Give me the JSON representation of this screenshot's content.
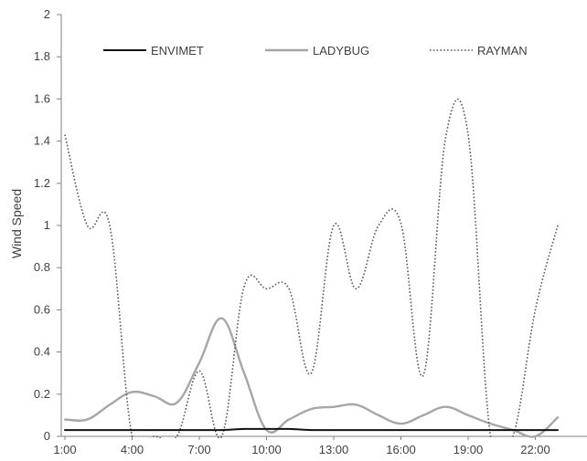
{
  "chart_data": {
    "type": "line",
    "title": "",
    "xlabel": "",
    "ylabel": "Wind Speed",
    "ylim": [
      0,
      2
    ],
    "yticks": [
      "0",
      "0.2",
      "0.4",
      "0.6",
      "0.8",
      "1",
      "1.2",
      "1.4",
      "1.6",
      "1.8",
      "2"
    ],
    "x": [
      "1:00",
      "2:00",
      "3:00",
      "4:00",
      "5:00",
      "6:00",
      "7:00",
      "8:00",
      "9:00",
      "10:00",
      "11:00",
      "12:00",
      "13:00",
      "14:00",
      "15:00",
      "16:00",
      "17:00",
      "18:00",
      "19:00",
      "20:00",
      "21:00",
      "22:00",
      "23:00"
    ],
    "xtick_labels": [
      "1:00",
      "4:00",
      "7:00",
      "10:00",
      "13:00",
      "16:00",
      "19:00",
      "22:00"
    ],
    "grid": false,
    "legend_position": "top",
    "series": [
      {
        "name": "ENVIMET",
        "color": "#111111",
        "style": "solid",
        "values": [
          0.03,
          0.03,
          0.03,
          0.03,
          0.03,
          0.03,
          0.03,
          0.03,
          0.035,
          0.035,
          0.035,
          0.03,
          0.03,
          0.03,
          0.03,
          0.03,
          0.03,
          0.03,
          0.03,
          0.03,
          0.03,
          0.03,
          0.03
        ]
      },
      {
        "name": "LADYBUG",
        "color": "#a6a6a6",
        "style": "solid",
        "values": [
          0.08,
          0.08,
          0.15,
          0.21,
          0.19,
          0.16,
          0.35,
          0.56,
          0.3,
          0.03,
          0.08,
          0.13,
          0.14,
          0.15,
          0.1,
          0.06,
          0.1,
          0.14,
          0.1,
          0.06,
          0.03,
          0.0,
          0.09
        ]
      },
      {
        "name": "RAYMAN",
        "color": "#595959",
        "style": "dotted",
        "values": [
          1.43,
          1.0,
          1.0,
          0.0,
          0.0,
          0.0,
          0.31,
          0.0,
          0.71,
          0.7,
          0.7,
          0.3,
          1.0,
          0.7,
          1.0,
          1.01,
          0.29,
          1.42,
          1.43,
          0.0,
          0.0,
          0.6,
          1.0
        ]
      }
    ]
  }
}
